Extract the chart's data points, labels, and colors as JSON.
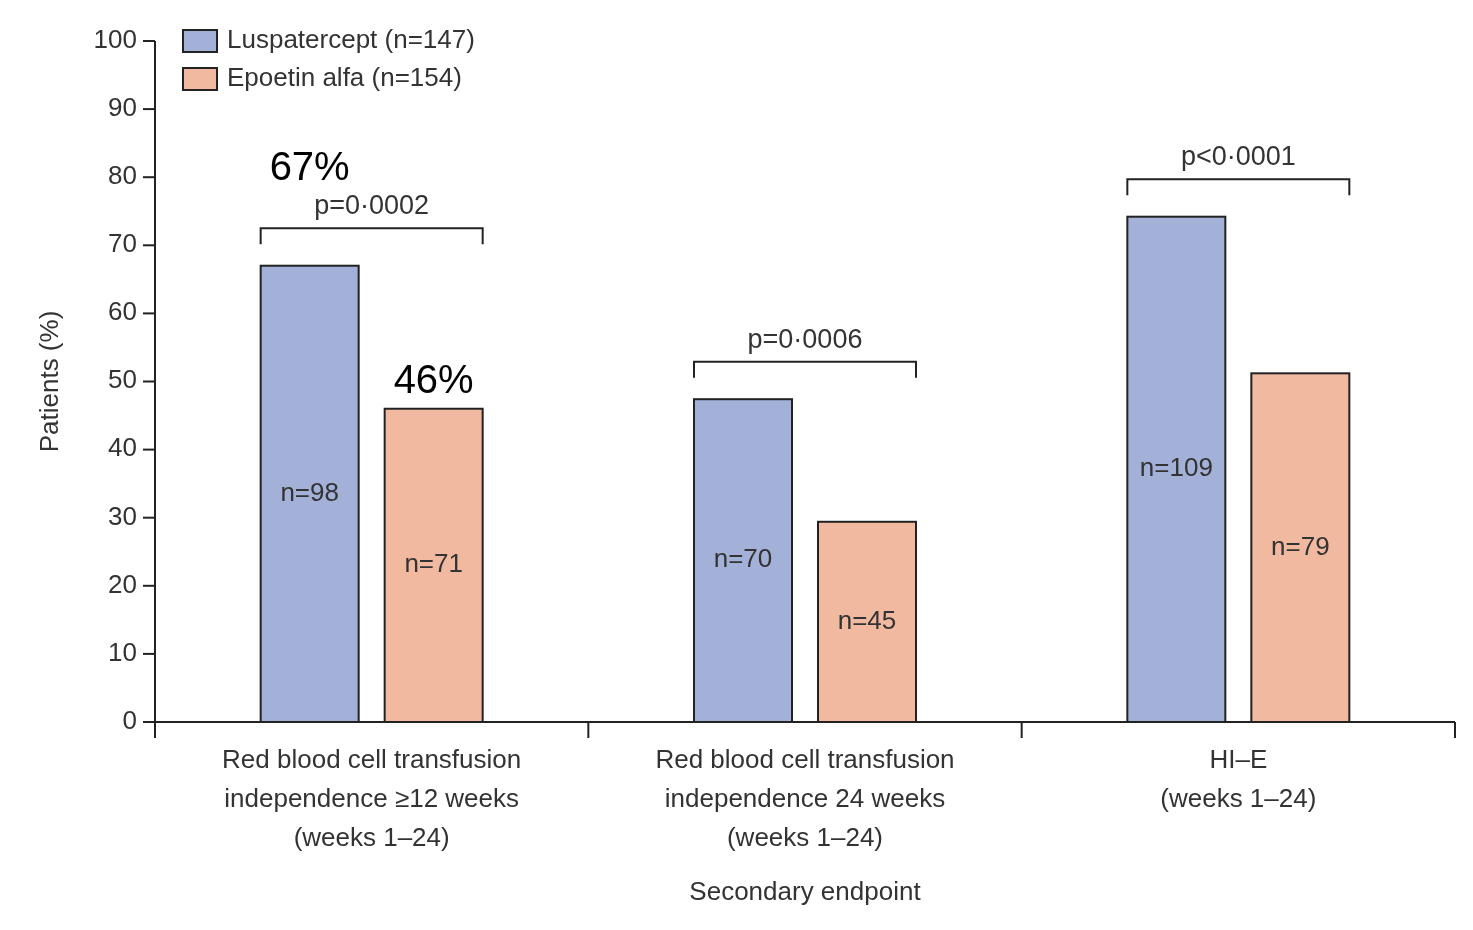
{
  "chart_data": {
    "type": "bar",
    "xlabel": "Secondary endpoint",
    "ylabel": "Patients (%)",
    "categories": [
      "Red blood cell transfusion\nindependence ≥12 weeks\n(weeks 1–24)",
      "Red blood cell transfusion\nindependence 24 weeks\n(weeks 1–24)",
      "HI–E\n(weeks 1–24)"
    ],
    "series": [
      {
        "name": "Luspatercept (n=147)",
        "color": "#a3b0d8",
        "values": [
          67,
          47.4,
          74.2
        ],
        "value_labels": [
          "67%",
          null,
          null
        ]
      },
      {
        "name": "Epoetin alfa (n=154)",
        "color": "#f0b9a0",
        "values": [
          46,
          29.4,
          51.2
        ],
        "value_labels": [
          "46%",
          null,
          null
        ]
      }
    ],
    "ylim": [
      0,
      100
    ],
    "yticks": [
      0,
      10,
      20,
      30,
      40,
      50,
      60,
      70,
      80,
      90,
      100
    ],
    "legend": "top left",
    "annotations": [
      "p=0·0002",
      "p=0·0006",
      "p<0·0001",
      "n=98",
      "n=70",
      "n=109",
      "n=71",
      "n=45",
      "n=79"
    ]
  }
}
